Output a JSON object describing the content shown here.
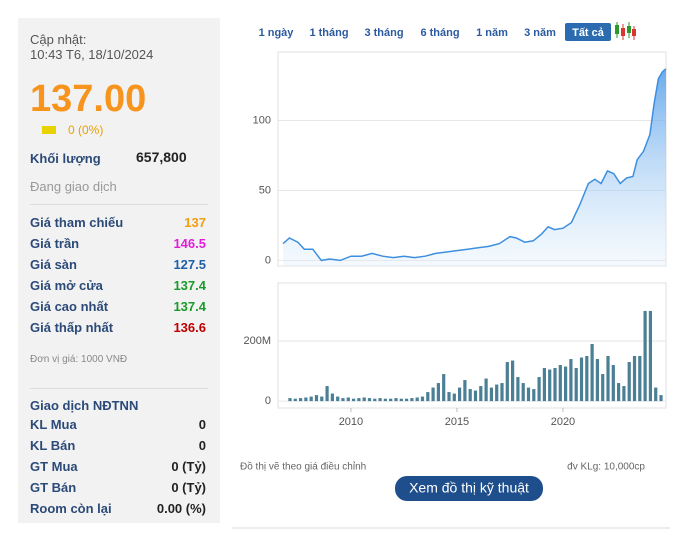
{
  "sidebar": {
    "updated_label": "Cập nhật:",
    "updated_time": "10:43 T6, 18/10/2024",
    "price": "137.00",
    "change": "0 (0%)",
    "volume_label": "Khối lượng",
    "volume": "657,800",
    "status": "Đang giao dịch",
    "price_rows": [
      {
        "label": "Giá tham chiếu",
        "value": "137",
        "color": "#f39c12"
      },
      {
        "label": "Giá trần",
        "value": "146.5",
        "color": "#e020d8"
      },
      {
        "label": "Giá sàn",
        "value": "127.5",
        "color": "#1f5fa8"
      },
      {
        "label": "Giá mở cửa",
        "value": "137.4",
        "color": "#1a9a2a"
      },
      {
        "label": "Giá cao nhất",
        "value": "137.4",
        "color": "#1a9a2a"
      },
      {
        "label": "Giá thấp nhất",
        "value": "136.6",
        "color": "#c00000"
      }
    ],
    "unit_note": "Đơn vị giá: 1000 VNĐ",
    "foreign_title": "Giao dịch NĐTNN",
    "foreign_rows": [
      {
        "label": "KL Mua",
        "value": "0"
      },
      {
        "label": "KL Bán",
        "value": "0"
      },
      {
        "label": "GT Mua",
        "value": "0 (Tỷ)"
      },
      {
        "label": "GT Bán",
        "value": "0 (Tỷ)"
      },
      {
        "label": "Room còn lại",
        "value": "0.00 (%)"
      }
    ]
  },
  "tabs": [
    "1 ngày",
    "1 tháng",
    "3 tháng",
    "6 tháng",
    "1 năm",
    "3 năm",
    "Tất cả"
  ],
  "active_tab": 6,
  "chart_data": [
    {
      "type": "area",
      "color": "#3d8fe0",
      "x": [
        2006.8,
        2007.1,
        2007.5,
        2007.8,
        2008.2,
        2008.6,
        2009,
        2009.5,
        2010,
        2010.5,
        2011,
        2011.5,
        2012,
        2012.5,
        2013,
        2013.5,
        2014,
        2014.5,
        2015,
        2015.5,
        2016,
        2016.5,
        2017,
        2017.5,
        2017.8,
        2018.2,
        2018.6,
        2019,
        2019.3,
        2019.6,
        2020,
        2020.4,
        2020.8,
        2021.2,
        2021.5,
        2021.8,
        2022.1,
        2022.4,
        2022.7,
        2023,
        2023.3,
        2023.5,
        2023.8,
        2024.1,
        2024.3,
        2024.5,
        2024.7,
        2024.86
      ],
      "values": [
        12,
        16,
        13,
        8,
        8,
        0,
        1,
        0,
        3,
        3,
        5,
        3,
        2,
        3,
        2,
        3,
        5,
        6,
        7,
        8,
        9,
        10,
        12,
        17,
        16,
        13,
        14,
        19,
        24,
        22,
        23,
        27,
        40,
        55,
        58,
        55,
        64,
        62,
        55,
        59,
        60,
        72,
        78,
        90,
        112,
        130,
        135,
        137
      ],
      "xlim": [
        2006.56,
        2024.86
      ],
      "ylim": [
        -4,
        149
      ],
      "yticks": [
        0,
        50,
        100
      ],
      "grid": true
    },
    {
      "type": "bar",
      "color": "#4a7f95",
      "x": [
        2007.125,
        2007.375,
        2007.625,
        2007.875,
        2008.125,
        2008.375,
        2008.625,
        2008.875,
        2009.125,
        2009.375,
        2009.625,
        2009.875,
        2010.125,
        2010.375,
        2010.625,
        2010.875,
        2011.125,
        2011.375,
        2011.625,
        2011.875,
        2012.125,
        2012.375,
        2012.625,
        2012.875,
        2013.125,
        2013.375,
        2013.625,
        2013.875,
        2014.125,
        2014.375,
        2014.625,
        2014.875,
        2015.125,
        2015.375,
        2015.625,
        2015.875,
        2016.125,
        2016.375,
        2016.625,
        2016.875,
        2017.125,
        2017.375,
        2017.625,
        2017.875,
        2018.125,
        2018.375,
        2018.625,
        2018.875,
        2019.125,
        2019.375,
        2019.625,
        2019.875,
        2020.125,
        2020.375,
        2020.625,
        2020.875,
        2021.125,
        2021.375,
        2021.625,
        2021.875,
        2022.125,
        2022.375,
        2022.625,
        2022.875,
        2023.125,
        2023.375,
        2023.625,
        2023.875,
        2024.125,
        2024.375,
        2024.625
      ],
      "values": [
        10000000,
        8000000,
        10000000,
        12000000,
        15000000,
        20000000,
        15000000,
        50000000,
        25000000,
        15000000,
        10000000,
        12000000,
        8000000,
        10000000,
        12000000,
        10000000,
        8000000,
        10000000,
        8000000,
        8000000,
        10000000,
        8000000,
        8000000,
        10000000,
        12000000,
        15000000,
        30000000,
        45000000,
        60000000,
        90000000,
        30000000,
        25000000,
        45000000,
        70000000,
        40000000,
        35000000,
        50000000,
        75000000,
        45000000,
        55000000,
        60000000,
        130000000,
        135000000,
        80000000,
        60000000,
        45000000,
        40000000,
        80000000,
        110000000,
        105000000,
        110000000,
        120000000,
        115000000,
        140000000,
        110000000,
        145000000,
        150000000,
        190000000,
        140000000,
        90000000,
        150000000,
        120000000,
        60000000,
        50000000,
        130000000,
        150000000,
        150000000,
        300000000,
        300000000,
        45000000,
        20000000
      ],
      "xlim": [
        2006.56,
        2024.86
      ],
      "xticks": [
        2010,
        2015,
        2020
      ],
      "ylim": [
        -23000000,
        393000000
      ],
      "yticks": [
        0,
        {
          "value": 200000000,
          "label": "200M"
        }
      ],
      "grid": true
    }
  ],
  "footer": {
    "note": "Đồ thị vẽ theo giá điều chỉnh",
    "unit": "đv KLg: 10,000cp",
    "button": "Xem đồ thị kỹ thuật"
  }
}
